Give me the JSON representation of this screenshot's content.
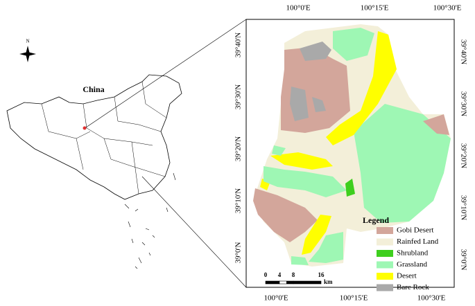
{
  "inset": {
    "label": "China",
    "north": "N"
  },
  "map": {
    "top_labels": [
      "100°0'E",
      "100°15'E",
      "100°30'E"
    ],
    "bottom_labels": [
      "100°0'E",
      "100°15'E",
      "100°30'E"
    ],
    "left_labels": [
      "39°40'N",
      "39°30'N",
      "39°20'N",
      "39°10'N",
      "39°0'N"
    ],
    "right_labels": [
      "39°40'N",
      "39°30'N",
      "39°20'N",
      "39°10'N",
      "39°0'N"
    ],
    "legend": {
      "title": "Legend",
      "items": [
        {
          "name": "Gobi Desert",
          "color": "#d3a69b"
        },
        {
          "name": "Rainfed Land",
          "color": "#f3efd9"
        },
        {
          "name": "Shrubland",
          "color": "#3ecf1e"
        },
        {
          "name": "Grassland",
          "color": "#9ef7b4"
        },
        {
          "name": "Desert",
          "color": "#ffff00"
        },
        {
          "name": "Bare Rock",
          "color": "#a9a9a9"
        }
      ]
    },
    "scale_bar": {
      "ticks": [
        0,
        4,
        8,
        16
      ],
      "unit": "km"
    }
  }
}
